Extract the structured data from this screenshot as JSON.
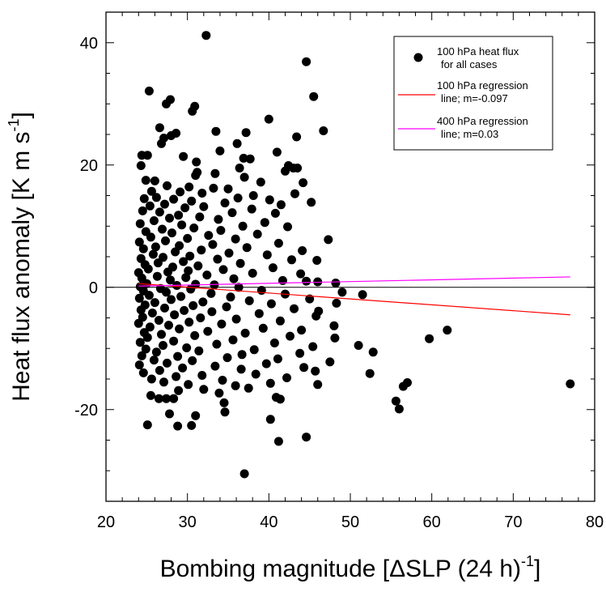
{
  "chart_data": {
    "type": "scatter",
    "xlabel": "Bombing magnitude [ΔSLP (24 h)",
    "xlabel_sup": "-1",
    "xlabel_end": "]",
    "ylabel": "Heat flux anomaly [K m s",
    "ylabel_sup": "-1",
    "ylabel_end": "]",
    "xlim": [
      20,
      80
    ],
    "ylim": [
      -35,
      45
    ],
    "xticks": [
      20,
      30,
      40,
      50,
      60,
      70,
      80
    ],
    "yticks": [
      -20,
      0,
      20,
      40
    ],
    "legend_position": "top-right",
    "colors": {
      "points": "#000000",
      "reg100": "#ff0000",
      "reg400": "#ff00ff",
      "zero_line": "#000000"
    },
    "legend": [
      {
        "kind": "marker",
        "line1": "100 hPa heat flux",
        "line2": "for all cases"
      },
      {
        "kind": "line",
        "color": "#ff0000",
        "line1": "100 hPa regression",
        "line2": "line; m=-0.097"
      },
      {
        "kind": "line",
        "color": "#ff00ff",
        "line1": "400 hPa regression",
        "line2": "line; m=0.03"
      }
    ],
    "regression_lines": [
      {
        "name": "100 hPa regression line; m=-0.097",
        "x": [
          24,
          77
        ],
        "y": [
          0.6,
          -4.5
        ]
      },
      {
        "name": "400 hPa regression line; m=0.03",
        "x": [
          24,
          77
        ],
        "y": [
          0.2,
          1.7
        ]
      }
    ],
    "points": [
      [
        32.3,
        41.2
      ],
      [
        44.6,
        36.9
      ],
      [
        25.3,
        32.1
      ],
      [
        45.5,
        31.2
      ],
      [
        27.9,
        30.7
      ],
      [
        27.4,
        30.0
      ],
      [
        30.9,
        29.6
      ],
      [
        30.6,
        28.8
      ],
      [
        40.0,
        27.5
      ],
      [
        26.6,
        26.1
      ],
      [
        46.7,
        25.6
      ],
      [
        33.5,
        25.5
      ],
      [
        37.2,
        25.3
      ],
      [
        28.6,
        25.2
      ],
      [
        28.0,
        24.8
      ],
      [
        43.4,
        24.6
      ],
      [
        27.1,
        24.4
      ],
      [
        26.8,
        23.5
      ],
      [
        36.1,
        23.5
      ],
      [
        34.0,
        22.3
      ],
      [
        41.0,
        22.1
      ],
      [
        24.4,
        21.6
      ],
      [
        25.1,
        21.6
      ],
      [
        29.5,
        21.4
      ],
      [
        36.9,
        21.1
      ],
      [
        37.7,
        21.0
      ],
      [
        31.1,
        20.5
      ],
      [
        24.3,
        19.9
      ],
      [
        42.4,
        19.9
      ],
      [
        43.0,
        19.5
      ],
      [
        43.5,
        19.5
      ],
      [
        36.4,
        19.5
      ],
      [
        42.0,
        19.0
      ],
      [
        31.2,
        18.8
      ],
      [
        33.4,
        18.6
      ],
      [
        31.0,
        18.3
      ],
      [
        37.0,
        18.0
      ],
      [
        24.9,
        17.5
      ],
      [
        26.0,
        17.4
      ],
      [
        39.0,
        17.2
      ],
      [
        44.2,
        17.1
      ],
      [
        27.5,
        16.6
      ],
      [
        30.2,
        16.4
      ],
      [
        33.2,
        16.2
      ],
      [
        35.0,
        16.1
      ],
      [
        25.6,
        15.7
      ],
      [
        29.1,
        15.6
      ],
      [
        31.8,
        15.4
      ],
      [
        43.2,
        15.3
      ],
      [
        38.1,
        15.0
      ],
      [
        26.2,
        14.7
      ],
      [
        36.2,
        14.6
      ],
      [
        24.7,
        14.5
      ],
      [
        28.3,
        14.4
      ],
      [
        40.1,
        14.3
      ],
      [
        30.5,
        14.1
      ],
      [
        45.2,
        13.9
      ],
      [
        34.6,
        13.8
      ],
      [
        27.2,
        13.6
      ],
      [
        41.5,
        13.5
      ],
      [
        25.4,
        13.3
      ],
      [
        32.0,
        13.2
      ],
      [
        29.7,
        13.0
      ],
      [
        37.9,
        12.8
      ],
      [
        24.5,
        12.5
      ],
      [
        26.6,
        12.3
      ],
      [
        35.5,
        12.2
      ],
      [
        40.8,
        12.1
      ],
      [
        28.9,
        11.8
      ],
      [
        31.5,
        11.5
      ],
      [
        27.8,
        11.3
      ],
      [
        33.8,
        11.1
      ],
      [
        25.9,
        10.9
      ],
      [
        39.5,
        10.6
      ],
      [
        24.2,
        10.4
      ],
      [
        29.3,
        10.2
      ],
      [
        36.8,
        10.0
      ],
      [
        42.3,
        9.9
      ],
      [
        30.8,
        9.7
      ],
      [
        26.9,
        9.5
      ],
      [
        34.1,
        9.3
      ],
      [
        24.9,
        9.1
      ],
      [
        28.1,
        8.9
      ],
      [
        38.6,
        8.7
      ],
      [
        32.6,
        8.5
      ],
      [
        25.5,
        8.2
      ],
      [
        30.0,
        8.0
      ],
      [
        35.9,
        7.9
      ],
      [
        47.3,
        7.8
      ],
      [
        27.3,
        7.6
      ],
      [
        24.1,
        7.4
      ],
      [
        41.2,
        7.2
      ],
      [
        33.1,
        7.0
      ],
      [
        29.0,
        6.8
      ],
      [
        26.1,
        6.6
      ],
      [
        37.3,
        6.5
      ],
      [
        24.6,
        6.3
      ],
      [
        31.7,
        6.1
      ],
      [
        44.1,
        6.0
      ],
      [
        28.5,
        5.8
      ],
      [
        35.1,
        5.6
      ],
      [
        25.8,
        5.4
      ],
      [
        39.8,
        5.3
      ],
      [
        30.3,
        5.1
      ],
      [
        27.0,
        4.9
      ],
      [
        24.3,
        4.7
      ],
      [
        33.7,
        4.6
      ],
      [
        42.8,
        4.5
      ],
      [
        45.9,
        4.4
      ],
      [
        29.5,
        4.2
      ],
      [
        26.4,
        4.0
      ],
      [
        36.5,
        3.9
      ],
      [
        24.8,
        3.7
      ],
      [
        31.3,
        3.5
      ],
      [
        28.2,
        3.3
      ],
      [
        40.5,
        3.2
      ],
      [
        25.2,
        3.0
      ],
      [
        34.4,
        2.9
      ],
      [
        30.1,
        2.7
      ],
      [
        27.6,
        2.5
      ],
      [
        24.0,
        2.4
      ],
      [
        38.0,
        2.3
      ],
      [
        43.9,
        2.2
      ],
      [
        32.4,
        2.0
      ],
      [
        26.3,
        1.8
      ],
      [
        29.8,
        1.6
      ],
      [
        24.4,
        1.5
      ],
      [
        35.7,
        1.4
      ],
      [
        27.9,
        1.2
      ],
      [
        41.7,
        1.1
      ],
      [
        44.6,
        1.0
      ],
      [
        46.0,
        0.9
      ],
      [
        48.2,
        0.7
      ],
      [
        25.0,
        0.6
      ],
      [
        31.0,
        0.5
      ],
      [
        33.3,
        0.4
      ],
      [
        28.7,
        0.3
      ],
      [
        24.2,
        0.1
      ],
      [
        36.3,
        0.0
      ],
      [
        26.7,
        -0.2
      ],
      [
        30.4,
        -0.3
      ],
      [
        39.1,
        -0.5
      ],
      [
        24.6,
        -0.6
      ],
      [
        27.4,
        -0.8
      ],
      [
        49.0,
        -0.8
      ],
      [
        51.5,
        -1.2
      ],
      [
        32.9,
        -1.0
      ],
      [
        42.0,
        -1.1
      ],
      [
        25.3,
        -1.3
      ],
      [
        29.2,
        -1.5
      ],
      [
        35.3,
        -1.6
      ],
      [
        24.1,
        -1.8
      ],
      [
        45.0,
        -1.9
      ],
      [
        28.0,
        -2.0
      ],
      [
        37.6,
        -2.2
      ],
      [
        31.9,
        -2.4
      ],
      [
        26.0,
        -2.5
      ],
      [
        48.3,
        -2.6
      ],
      [
        40.3,
        -2.7
      ],
      [
        24.8,
        -2.9
      ],
      [
        30.7,
        -3.0
      ],
      [
        34.8,
        -3.2
      ],
      [
        27.2,
        -3.4
      ],
      [
        43.1,
        -3.5
      ],
      [
        24.3,
        -3.7
      ],
      [
        29.6,
        -3.8
      ],
      [
        46.1,
        -3.9
      ],
      [
        33.0,
        -4.0
      ],
      [
        25.7,
        -4.2
      ],
      [
        38.8,
        -4.3
      ],
      [
        28.4,
        -4.5
      ],
      [
        45.8,
        -4.7
      ],
      [
        24.5,
        -4.9
      ],
      [
        31.6,
        -5.0
      ],
      [
        36.0,
        -5.2
      ],
      [
        26.5,
        -5.4
      ],
      [
        41.4,
        -5.5
      ],
      [
        30.2,
        -5.7
      ],
      [
        24.0,
        -5.9
      ],
      [
        34.2,
        -6.0
      ],
      [
        27.7,
        -6.2
      ],
      [
        48.0,
        -6.3
      ],
      [
        25.4,
        -6.5
      ],
      [
        39.3,
        -6.7
      ],
      [
        29.0,
        -6.8
      ],
      [
        44.0,
        -7.0
      ],
      [
        61.9,
        -7.0
      ],
      [
        32.5,
        -7.2
      ],
      [
        24.7,
        -7.4
      ],
      [
        37.1,
        -7.5
      ],
      [
        26.8,
        -7.7
      ],
      [
        30.9,
        -7.9
      ],
      [
        42.6,
        -8.0
      ],
      [
        59.7,
        -8.4
      ],
      [
        48.1,
        -8.3
      ],
      [
        25.1,
        -8.2
      ],
      [
        35.6,
        -8.6
      ],
      [
        28.3,
        -8.8
      ],
      [
        24.2,
        -9.0
      ],
      [
        40.7,
        -9.1
      ],
      [
        33.6,
        -9.3
      ],
      [
        51.0,
        -9.5
      ],
      [
        27.0,
        -9.5
      ],
      [
        45.4,
        -9.7
      ],
      [
        29.9,
        -9.9
      ],
      [
        24.9,
        -10.1
      ],
      [
        38.2,
        -10.2
      ],
      [
        31.4,
        -10.4
      ],
      [
        52.8,
        -10.6
      ],
      [
        26.2,
        -10.6
      ],
      [
        43.8,
        -10.8
      ],
      [
        36.7,
        -11.0
      ],
      [
        24.4,
        -11.2
      ],
      [
        28.8,
        -11.3
      ],
      [
        34.9,
        -11.5
      ],
      [
        41.1,
        -11.7
      ],
      [
        25.9,
        -11.9
      ],
      [
        30.6,
        -12.0
      ],
      [
        47.5,
        -12.2
      ],
      [
        27.5,
        -12.4
      ],
      [
        39.7,
        -12.5
      ],
      [
        24.1,
        -12.7
      ],
      [
        33.4,
        -12.9
      ],
      [
        44.3,
        -13.1
      ],
      [
        29.4,
        -13.2
      ],
      [
        36.6,
        -13.4
      ],
      [
        26.6,
        -13.6
      ],
      [
        45.7,
        -13.7
      ],
      [
        52.4,
        -14.1
      ],
      [
        24.6,
        -14.0
      ],
      [
        38.4,
        -14.2
      ],
      [
        31.8,
        -14.4
      ],
      [
        28.6,
        -14.6
      ],
      [
        42.2,
        -14.8
      ],
      [
        46.0,
        -15.9
      ],
      [
        25.6,
        -15.0
      ],
      [
        34.3,
        -15.2
      ],
      [
        57.0,
        -15.6
      ],
      [
        56.5,
        -16.2
      ],
      [
        77.0,
        -15.8
      ],
      [
        27.1,
        -15.5
      ],
      [
        40.2,
        -15.7
      ],
      [
        30.1,
        -15.9
      ],
      [
        35.9,
        -16.1
      ],
      [
        32.0,
        -16.7
      ],
      [
        37.5,
        -16.5
      ],
      [
        28.9,
        -16.9
      ],
      [
        33.9,
        -17.3
      ],
      [
        25.5,
        -17.7
      ],
      [
        40.9,
        -18.0
      ],
      [
        26.5,
        -18.2
      ],
      [
        27.4,
        -18.2
      ],
      [
        28.3,
        -18.2
      ],
      [
        41.4,
        -18.3
      ],
      [
        55.6,
        -18.6
      ],
      [
        34.5,
        -18.9
      ],
      [
        56.0,
        -19.9
      ],
      [
        34.6,
        -20.4
      ],
      [
        27.8,
        -20.7
      ],
      [
        31.0,
        -21.0
      ],
      [
        40.2,
        -21.6
      ],
      [
        25.1,
        -22.5
      ],
      [
        28.8,
        -22.7
      ],
      [
        30.5,
        -22.6
      ],
      [
        44.6,
        -24.5
      ],
      [
        41.2,
        -25.2
      ],
      [
        37.0,
        -30.5
      ]
    ]
  }
}
